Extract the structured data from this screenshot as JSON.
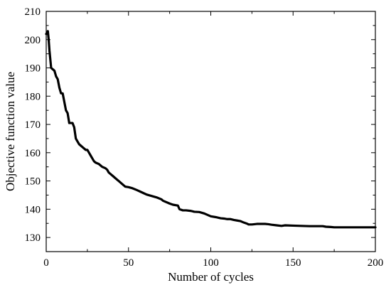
{
  "chart_data": {
    "type": "line",
    "title": "",
    "xlabel": "Number of cycles",
    "ylabel": "Objective function value",
    "xlim": [
      0,
      200
    ],
    "ylim": [
      125,
      210
    ],
    "xticks": [
      0,
      50,
      100,
      150,
      200
    ],
    "yticks": [
      130,
      140,
      150,
      160,
      170,
      180,
      190,
      200,
      210
    ],
    "xtick_labels": [
      "0",
      "50",
      "100",
      "150",
      "200"
    ],
    "ytick_labels": [
      "130",
      "140",
      "150",
      "160",
      "170",
      "180",
      "190",
      "200",
      "210"
    ],
    "grid": false,
    "legend": false,
    "colors": {
      "line": "#000000",
      "axes": "#000000"
    },
    "series": [
      {
        "x": [
          0,
          1,
          1.5,
          2,
          2.5,
          3,
          4,
          5,
          6,
          7,
          8,
          9,
          10,
          11,
          12,
          13,
          14,
          15,
          16,
          17,
          18,
          20,
          22,
          24,
          25,
          27,
          29,
          30,
          32,
          34,
          36,
          37,
          38,
          40,
          42,
          44,
          46,
          48,
          50,
          52,
          55,
          58,
          61,
          64,
          67,
          70,
          71,
          75,
          77,
          80,
          81,
          83,
          85,
          88,
          90,
          93,
          96,
          98,
          100,
          103,
          106,
          108,
          110,
          112,
          114,
          116,
          118,
          120,
          122,
          123,
          125,
          128,
          130,
          133,
          135,
          137,
          140,
          143,
          145,
          150,
          155,
          160,
          165,
          168,
          170,
          173,
          175,
          180,
          185,
          190,
          195,
          200
        ],
        "y": [
          202,
          203,
          200,
          196,
          193,
          190,
          189.5,
          189,
          187,
          186,
          183,
          181,
          181,
          178,
          175,
          174,
          170.5,
          170.5,
          170.5,
          169,
          165,
          163,
          162,
          161,
          161,
          159,
          157,
          156.5,
          156,
          155,
          154.5,
          154,
          153,
          152,
          151,
          150,
          149,
          148,
          147.8,
          147.5,
          146.8,
          146,
          145.2,
          144.7,
          144.2,
          143.5,
          143,
          142,
          141.6,
          141.3,
          140,
          139.6,
          139.6,
          139.4,
          139.1,
          139,
          138.5,
          138,
          137.5,
          137.2,
          136.8,
          136.7,
          136.5,
          136.5,
          136.2,
          136,
          135.8,
          135.3,
          134.9,
          134.6,
          134.6,
          134.8,
          134.8,
          134.8,
          134.7,
          134.5,
          134.3,
          134.1,
          134.3,
          134.2,
          134.1,
          134,
          134,
          134,
          133.8,
          133.7,
          133.6,
          133.6,
          133.6,
          133.6,
          133.6,
          133.6
        ]
      }
    ]
  }
}
